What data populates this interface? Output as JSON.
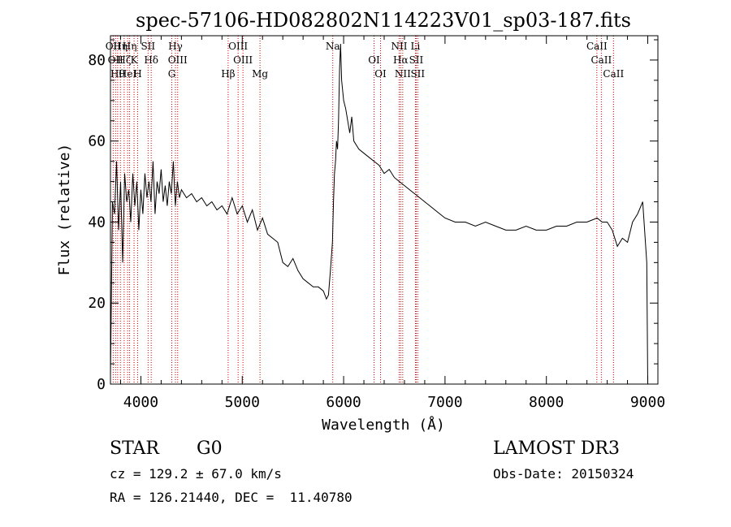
{
  "chart_data": {
    "type": "line",
    "title": "spec-57106-HD082802N114223V01_sp03-187.fits",
    "xlabel": "Wavelength (Å)",
    "ylabel": "Flux (relative)",
    "xlim": [
      3700,
      9100
    ],
    "ylim": [
      0,
      86
    ],
    "x_ticks": [
      4000,
      5000,
      6000,
      7000,
      8000,
      9000
    ],
    "x_tick_labels": [
      "4000",
      "5000",
      "6000",
      "7000",
      "8000",
      "9000"
    ],
    "y_ticks": [
      0,
      20,
      40,
      60,
      80
    ],
    "y_tick_labels": [
      "0",
      "20",
      "40",
      "60",
      "80"
    ],
    "grid": false,
    "line_color": "#000000",
    "marker_color": "#cc0000",
    "series": [
      {
        "x": [
          3700,
          3720,
          3740,
          3760,
          3780,
          3800,
          3820,
          3840,
          3860,
          3880,
          3900,
          3920,
          3940,
          3960,
          3980,
          4000,
          4020,
          4040,
          4060,
          4080,
          4100,
          4120,
          4140,
          4160,
          4180,
          4200,
          4220,
          4240,
          4260,
          4280,
          4300,
          4320,
          4340,
          4360,
          4380,
          4400,
          4450,
          4500,
          4550,
          4600,
          4650,
          4700,
          4750,
          4800,
          4850,
          4900,
          4950,
          5000,
          5050,
          5100,
          5150,
          5200,
          5250,
          5300,
          5350,
          5400,
          5450,
          5500,
          5550,
          5600,
          5650,
          5700,
          5750,
          5800,
          5830,
          5850,
          5870,
          5890,
          5900,
          5910,
          5920,
          5930,
          5940,
          5950,
          5960,
          5970,
          5980,
          6000,
          6020,
          6040,
          6060,
          6080,
          6100,
          6150,
          6200,
          6250,
          6300,
          6350,
          6400,
          6450,
          6500,
          6550,
          6600,
          6650,
          6700,
          6750,
          6800,
          6850,
          6900,
          6950,
          7000,
          7100,
          7200,
          7300,
          7400,
          7500,
          7600,
          7700,
          7800,
          7900,
          8000,
          8100,
          8200,
          8300,
          8400,
          8500,
          8550,
          8600,
          8650,
          8700,
          8750,
          8800,
          8850,
          8900,
          8950,
          8990,
          9000
        ],
        "y": [
          2,
          45,
          42,
          55,
          38,
          50,
          30,
          52,
          45,
          48,
          40,
          52,
          44,
          50,
          38,
          48,
          42,
          52,
          46,
          50,
          45,
          55,
          42,
          50,
          47,
          53,
          45,
          49,
          44,
          50,
          47,
          55,
          44,
          50,
          46,
          48,
          46,
          47,
          45,
          46,
          44,
          45,
          43,
          44,
          42,
          46,
          42,
          44,
          40,
          43,
          38,
          41,
          37,
          36,
          35,
          30,
          29,
          31,
          28,
          26,
          25,
          24,
          24,
          23,
          21,
          22,
          28,
          35,
          45,
          52,
          55,
          60,
          58,
          65,
          78,
          84,
          75,
          70,
          68,
          65,
          62,
          66,
          60,
          58,
          57,
          56,
          55,
          54,
          52,
          53,
          51,
          50,
          49,
          48,
          47,
          46,
          45,
          44,
          43,
          42,
          41,
          40,
          40,
          39,
          40,
          39,
          38,
          38,
          39,
          38,
          38,
          39,
          39,
          40,
          40,
          41,
          40,
          40,
          38,
          34,
          36,
          35,
          40,
          42,
          45,
          30,
          0
        ]
      }
    ],
    "line_markers": [
      {
        "wavelength": 3727,
        "label": "OII"
      },
      {
        "wavelength": 3750,
        "label": "OII"
      },
      {
        "wavelength": 3771,
        "label": "Hθ"
      },
      {
        "wavelength": 3798,
        "label": "Hη"
      },
      {
        "wavelength": 3835,
        "label": "Hζ"
      },
      {
        "wavelength": 3869,
        "label": "HeI"
      },
      {
        "wavelength": 3889,
        "label": "Hη"
      },
      {
        "wavelength": 3933,
        "label": "K"
      },
      {
        "wavelength": 3968,
        "label": "H"
      },
      {
        "wavelength": 4071,
        "label": "SII"
      },
      {
        "wavelength": 4102,
        "label": "Hδ"
      },
      {
        "wavelength": 4305,
        "label": "G"
      },
      {
        "wavelength": 4341,
        "label": "Hγ"
      },
      {
        "wavelength": 4363,
        "label": "OIII"
      },
      {
        "wavelength": 4861,
        "label": "Hβ"
      },
      {
        "wavelength": 4959,
        "label": "OIII"
      },
      {
        "wavelength": 5007,
        "label": "OIII"
      },
      {
        "wavelength": 5175,
        "label": "Mg"
      },
      {
        "wavelength": 5893,
        "label": "Na"
      },
      {
        "wavelength": 6300,
        "label": "OI"
      },
      {
        "wavelength": 6364,
        "label": "OI"
      },
      {
        "wavelength": 6548,
        "label": "NII"
      },
      {
        "wavelength": 6563,
        "label": "Hα"
      },
      {
        "wavelength": 6583,
        "label": "NII"
      },
      {
        "wavelength": 6708,
        "label": "Li"
      },
      {
        "wavelength": 6716,
        "label": "SII"
      },
      {
        "wavelength": 6731,
        "label": "SII"
      },
      {
        "wavelength": 8498,
        "label": "CaII"
      },
      {
        "wavelength": 8542,
        "label": "CaII"
      },
      {
        "wavelength": 8662,
        "label": "CaII"
      }
    ]
  },
  "info": {
    "object_class": "STAR",
    "subclass": "G0",
    "survey": "LAMOST DR3",
    "cz": "cz = 129.2 ± 67.0 km/s",
    "obs_date": "Obs-Date: 20150324",
    "coords": "RA = 126.21440, DEC =  11.40780"
  }
}
